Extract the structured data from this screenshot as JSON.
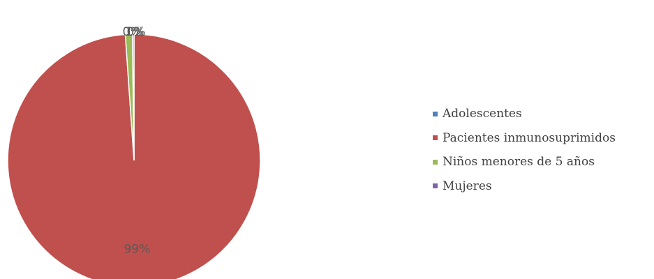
{
  "chart_data": {
    "type": "pie",
    "title": "",
    "categories": [
      "Adolescentes",
      "Pacientes inmunosuprimidos",
      "Niños menores de 5 años",
      "Mujeres"
    ],
    "values": [
      0.0,
      98.9,
      0.9,
      0.2
    ],
    "data_labels": [
      "0%",
      "99%",
      "1%",
      "0%"
    ],
    "colors": [
      "#4f81bd",
      "#c0504d",
      "#9bbb59",
      "#8064a2"
    ],
    "legend_position": "right"
  }
}
